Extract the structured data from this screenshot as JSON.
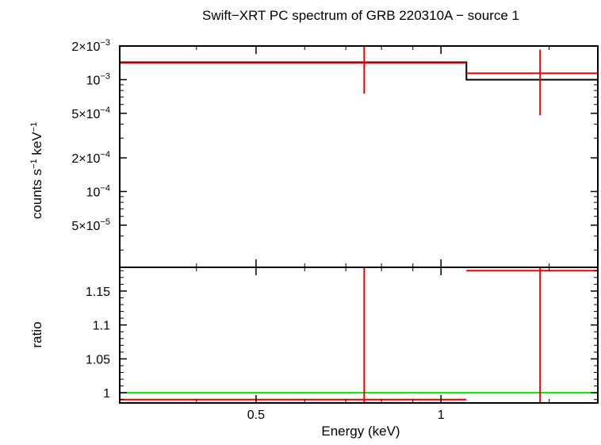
{
  "chart_data": [
    {
      "panel": "spectrum",
      "type": "scatter",
      "title": "Swift−XRT PC spectrum of GRB 220310A − source 1",
      "xlabel": "",
      "ylabel_main": "counts s",
      "ylabel_sup1": "−1",
      "ylabel_mid": " keV",
      "ylabel_sup2": "−1",
      "yscale": "log",
      "xscale": "log",
      "xlim": [
        0.3,
        1.8
      ],
      "ylim": [
        2.1e-05,
        0.002
      ],
      "y_ticks": [
        {
          "value": 0.002,
          "mant": "2×10",
          "exp": "−3"
        },
        {
          "value": 0.001,
          "mant": "10",
          "exp": "−3"
        },
        {
          "value": 0.0005,
          "mant": "5×10",
          "exp": "−4"
        },
        {
          "value": 0.0002,
          "mant": "2×10",
          "exp": "−4"
        },
        {
          "value": 0.0001,
          "mant": "10",
          "exp": "−4"
        },
        {
          "value": 5e-05,
          "mant": "5×10",
          "exp": "−5"
        }
      ],
      "data_points": [
        {
          "x": 0.75,
          "xlo": 0.3,
          "xhi": 1.1,
          "y": 0.00141,
          "ylo": 0.00075,
          "yhi": 0.002
        },
        {
          "x": 1.45,
          "xlo": 1.1,
          "xhi": 1.8,
          "y": 0.00114,
          "ylo": 0.00048,
          "yhi": 0.00186
        }
      ],
      "model_steps": [
        {
          "xlo": 0.3,
          "xhi": 1.1,
          "y": 0.00143
        },
        {
          "xlo": 1.1,
          "xhi": 1.8,
          "y": 0.001
        }
      ],
      "data_color": "#e60000",
      "model_color": "#000000"
    },
    {
      "panel": "ratio",
      "type": "scatter",
      "xlabel": "Energy (keV)",
      "ylabel": "ratio",
      "xscale": "log",
      "xlim": [
        0.3,
        1.8
      ],
      "ylim": [
        0.985,
        1.185
      ],
      "x_ticks": [
        {
          "value": 0.5,
          "label": "0.5"
        },
        {
          "value": 1,
          "label": "1"
        }
      ],
      "y_ticks": [
        {
          "value": 1.15,
          "label": "1.15"
        },
        {
          "value": 1.1,
          "label": "1.1"
        },
        {
          "value": 1.05,
          "label": "1.05"
        },
        {
          "value": 1,
          "label": "1"
        }
      ],
      "data_points": [
        {
          "x": 0.75,
          "xlo": 0.3,
          "xhi": 1.1,
          "y": 0.99,
          "ylo": 0.985,
          "yhi": 1.185
        },
        {
          "x": 1.45,
          "xlo": 1.1,
          "xhi": 1.8,
          "y": 1.18,
          "ylo": 0.985,
          "yhi": 1.185
        }
      ],
      "reference_line": 1,
      "data_color": "#e60000",
      "reference_color": "#00e600"
    }
  ]
}
